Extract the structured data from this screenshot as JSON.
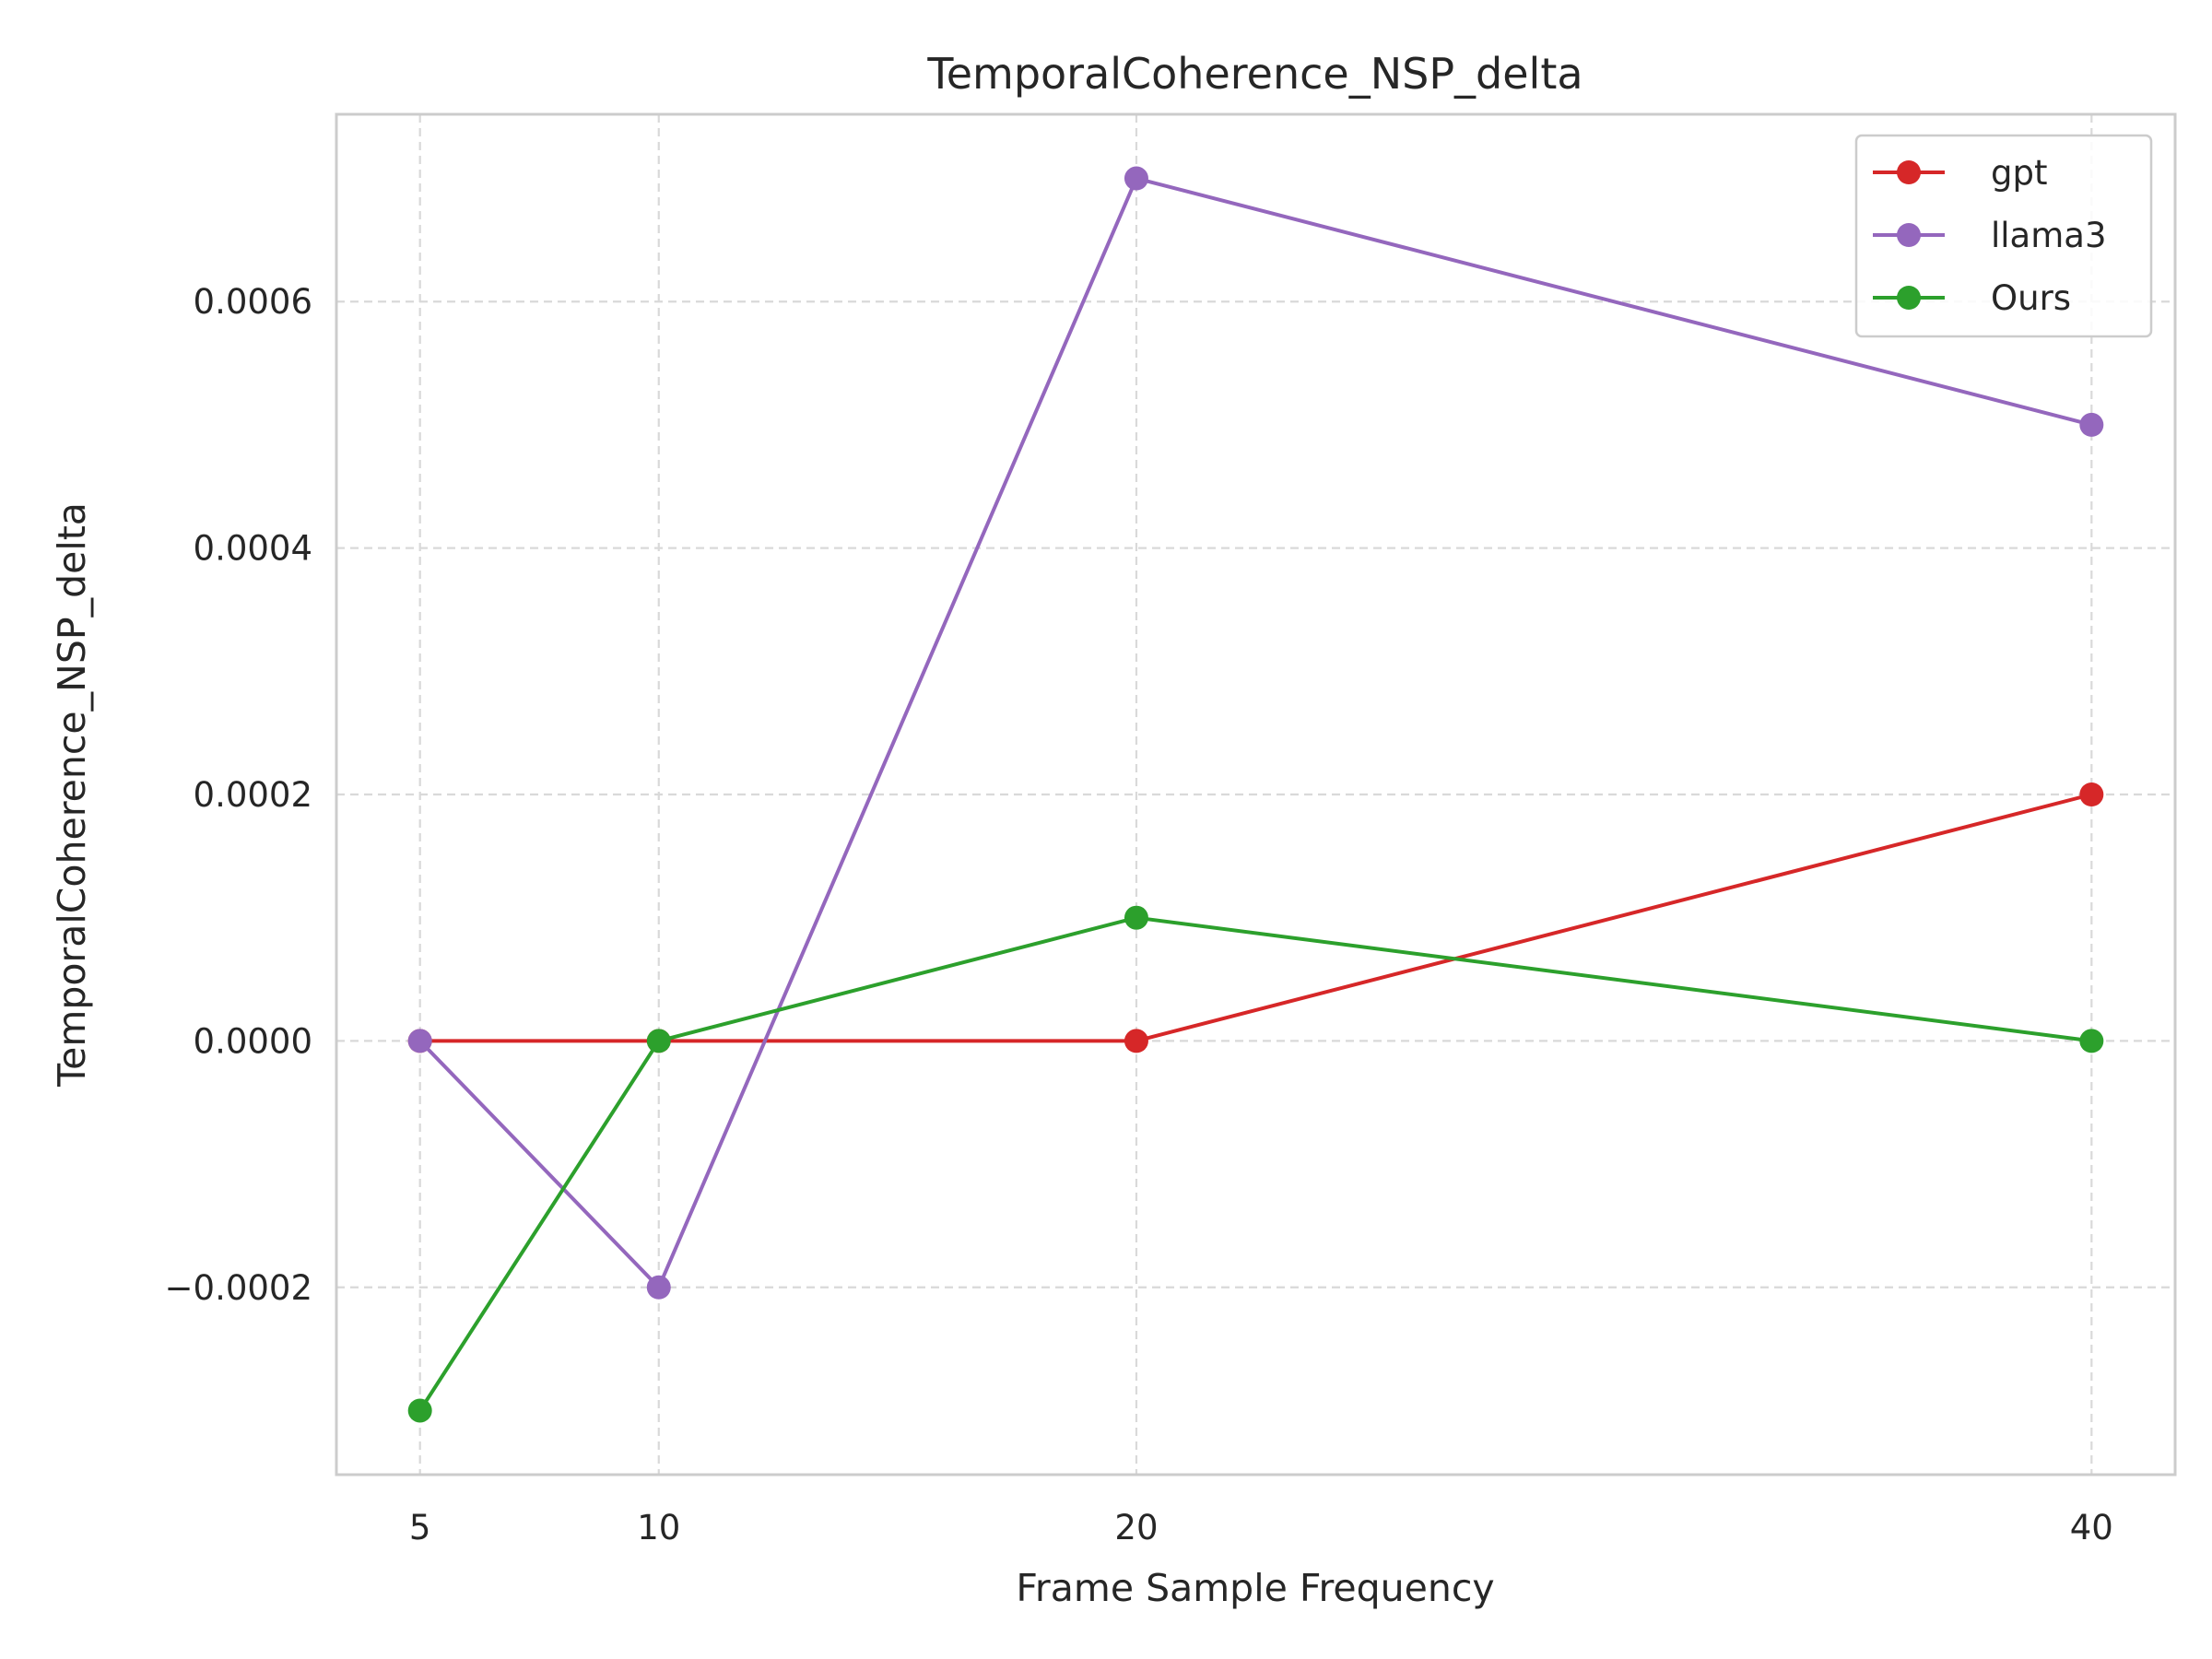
{
  "chart_data": {
    "type": "line",
    "title": "TemporalCoherence_NSP_delta",
    "xlabel": "Frame Sample Frequency",
    "ylabel": "TemporalCoherence_NSP_delta",
    "x": [
      5,
      10,
      20,
      40
    ],
    "x_ticks": [
      5,
      10,
      20,
      40
    ],
    "x_tick_labels": [
      "5",
      "10",
      "20",
      "40"
    ],
    "xlim": [
      3.25,
      41.75
    ],
    "y_ticks": [
      -0.0002,
      0.0,
      0.0002,
      0.0004,
      0.0006
    ],
    "y_tick_labels": [
      "−0.0002",
      "0.0000",
      "0.0002",
      "0.0004",
      "0.0006"
    ],
    "ylim": [
      -0.000352,
      0.000752
    ],
    "grid": true,
    "legend_position": "top-right",
    "series": [
      {
        "name": "gpt",
        "color": "#d62728",
        "values": [
          0.0,
          0.0,
          0.0,
          0.0002
        ]
      },
      {
        "name": "llama3",
        "color": "#9467bd",
        "values": [
          0.0,
          -0.0002,
          0.0007,
          0.0005
        ]
      },
      {
        "name": "Ours",
        "color": "#2ca02c",
        "values": [
          -0.0003,
          0.0,
          0.0001,
          0.0
        ]
      }
    ]
  }
}
